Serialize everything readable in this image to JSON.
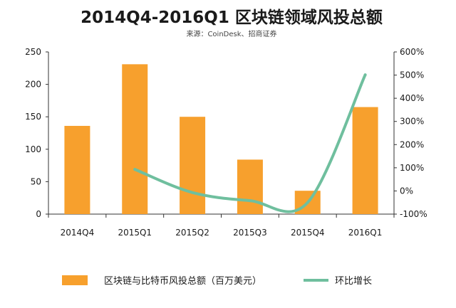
{
  "chart_data": {
    "type": "bar",
    "title": "2014Q4-2016Q1 区块链领域风投总额",
    "subtitle": "来源：CoinDesk、招商证券",
    "categories": [
      "2014Q4",
      "2015Q1",
      "2015Q2",
      "2015Q3",
      "2015Q4",
      "2016Q1"
    ],
    "series": [
      {
        "name": "区块链与比特币风投总额（百万美元）",
        "type": "bar",
        "axis": "left",
        "values": [
          136,
          231,
          150,
          84,
          36,
          165
        ],
        "color": "#f7a02d"
      },
      {
        "name": "环比增长",
        "type": "line",
        "axis": "right",
        "values": [
          null,
          93,
          -7,
          -42,
          -50,
          501
        ],
        "color": "#6fbf9e"
      }
    ],
    "y_left": {
      "min": 0,
      "max": 250,
      "ticks": [
        "0",
        "50",
        "100",
        "150",
        "200",
        "250"
      ]
    },
    "y_right": {
      "min": -100,
      "max": 600,
      "ticks": [
        "-100%",
        "0%",
        "100%",
        "200%",
        "300%",
        "400%",
        "500%",
        "600%"
      ]
    },
    "grid": false,
    "legend": {
      "position": "bottom"
    }
  }
}
